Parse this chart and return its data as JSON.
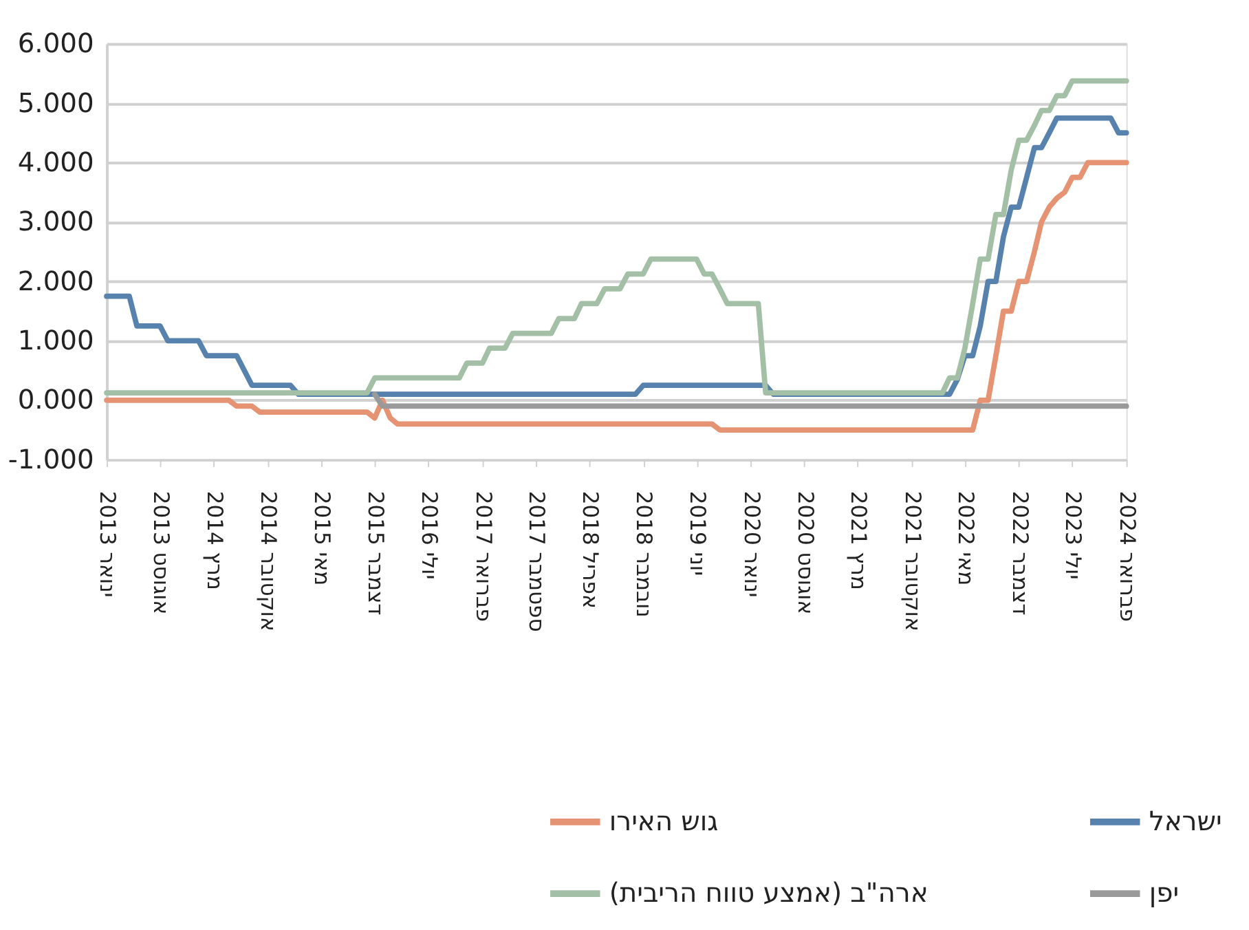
{
  "chart_data": {
    "type": "line",
    "ylim": [
      -1,
      6
    ],
    "yticks": [
      {
        "value": -1,
        "label": "-1.000"
      },
      {
        "value": 0,
        "label": "0.000"
      },
      {
        "value": 1,
        "label": "1.000"
      },
      {
        "value": 2,
        "label": "2.000"
      },
      {
        "value": 3,
        "label": "3.000"
      },
      {
        "value": 4,
        "label": "4.000"
      },
      {
        "value": 5,
        "label": "5.000"
      },
      {
        "value": 6,
        "label": "6.000"
      }
    ],
    "xlim": [
      "2013-01",
      "2024-02"
    ],
    "xticks": [
      {
        "value": "2013-01",
        "label": "ינואר 2013"
      },
      {
        "value": "2013-08",
        "label": "אוגוסט 2013"
      },
      {
        "value": "2014-03",
        "label": "מרץ 2014"
      },
      {
        "value": "2014-10",
        "label": "אוקטובר 2014"
      },
      {
        "value": "2015-05",
        "label": "מאי 2015"
      },
      {
        "value": "2015-12",
        "label": "דצמבר 2015"
      },
      {
        "value": "2016-07",
        "label": "יולי 2016"
      },
      {
        "value": "2017-02",
        "label": "פברואר 2017"
      },
      {
        "value": "2017-09",
        "label": "ספטמבר 2017"
      },
      {
        "value": "2018-04",
        "label": "אפריל 2018"
      },
      {
        "value": "2018-11",
        "label": "נובמבר 2018"
      },
      {
        "value": "2019-06",
        "label": "יוני 2019"
      },
      {
        "value": "2020-01",
        "label": "ינואר 2020"
      },
      {
        "value": "2020-08",
        "label": "אוגוסט 2020"
      },
      {
        "value": "2021-03",
        "label": "מרץ 2021"
      },
      {
        "value": "2021-10",
        "label": "אוקטובר 2021"
      },
      {
        "value": "2022-05",
        "label": "מאי 2022"
      },
      {
        "value": "2022-12",
        "label": "דצמבר 2022"
      },
      {
        "value": "2023-07",
        "label": "יולי 2023"
      },
      {
        "value": "2024-02",
        "label": "פברואר 2024"
      }
    ],
    "grid": "y",
    "legend": "bottom",
    "series": [
      {
        "name": "גוש האירו",
        "color": "#e59373",
        "x": [
          "2013-01",
          "2014-05",
          "2014-06",
          "2014-08",
          "2014-09",
          "2015-11",
          "2015-12",
          "2016-01",
          "2016-02",
          "2016-03",
          "2019-08",
          "2019-09",
          "2022-06",
          "2022-07",
          "2022-08",
          "2022-09",
          "2022-10",
          "2022-11",
          "2022-12",
          "2023-01",
          "2023-02",
          "2023-03",
          "2023-04",
          "2023-05",
          "2023-06",
          "2023-07",
          "2023-08",
          "2023-09",
          "2024-02"
        ],
        "values": [
          0,
          0,
          -0.1,
          -0.1,
          -0.2,
          -0.2,
          -0.3,
          0,
          -0.3,
          -0.4,
          -0.4,
          -0.5,
          -0.5,
          0,
          0,
          0.75,
          1.5,
          1.5,
          2,
          2,
          2.5,
          3,
          3.25,
          3.4,
          3.5,
          3.75,
          3.75,
          4,
          4
        ]
      },
      {
        "name": "ישראל",
        "color": "#5782ad",
        "x": [
          "2013-01",
          "2013-04",
          "2013-05",
          "2013-08",
          "2013-09",
          "2014-01",
          "2014-02",
          "2014-06",
          "2014-08",
          "2015-01",
          "2015-02",
          "2018-10",
          "2018-11",
          "2020-03",
          "2020-04",
          "2022-03",
          "2022-04",
          "2022-05",
          "2022-06",
          "2022-07",
          "2022-08",
          "2022-09",
          "2022-10",
          "2022-11",
          "2022-12",
          "2023-01",
          "2023-02",
          "2023-03",
          "2023-04",
          "2023-05",
          "2023-12",
          "2024-01",
          "2024-02"
        ],
        "values": [
          1.75,
          1.75,
          1.25,
          1.25,
          1,
          1,
          0.75,
          0.75,
          0.25,
          0.25,
          0.1,
          0.1,
          0.25,
          0.25,
          0.1,
          0.1,
          0.35,
          0.75,
          0.75,
          1.25,
          2,
          2,
          2.75,
          3.25,
          3.25,
          3.75,
          4.25,
          4.25,
          4.5,
          4.75,
          4.75,
          4.5,
          4.5
        ]
      },
      {
        "name": "ארה\"ב (אמצע טווח הריבית)",
        "color": "#a3c0a6",
        "x": [
          "2013-01",
          "2015-11",
          "2015-12",
          "2016-11",
          "2016-12",
          "2017-02",
          "2017-03",
          "2017-05",
          "2017-06",
          "2017-11",
          "2017-12",
          "2018-02",
          "2018-03",
          "2018-05",
          "2018-06",
          "2018-08",
          "2018-09",
          "2018-11",
          "2018-12",
          "2019-06",
          "2019-07",
          "2019-08",
          "2019-09",
          "2019-10",
          "2020-02",
          "2020-03",
          "2022-02",
          "2022-03",
          "2022-04",
          "2022-05",
          "2022-06",
          "2022-07",
          "2022-08",
          "2022-09",
          "2022-10",
          "2022-11",
          "2022-12",
          "2023-01",
          "2023-02",
          "2023-03",
          "2023-04",
          "2023-05",
          "2023-06",
          "2023-07",
          "2024-02"
        ],
        "values": [
          0.125,
          0.125,
          0.375,
          0.375,
          0.625,
          0.625,
          0.875,
          0.875,
          1.125,
          1.125,
          1.375,
          1.375,
          1.625,
          1.625,
          1.875,
          1.875,
          2.125,
          2.125,
          2.375,
          2.375,
          2.125,
          2.125,
          1.875,
          1.625,
          1.625,
          0.125,
          0.125,
          0.375,
          0.375,
          0.875,
          1.625,
          2.375,
          2.375,
          3.125,
          3.125,
          3.875,
          4.375,
          4.375,
          4.625,
          4.875,
          4.875,
          5.125,
          5.125,
          5.375,
          5.375
        ]
      },
      {
        "name": "יפן",
        "color": "#9a9a9a",
        "x": [
          "2015-12",
          "2016-01",
          "2024-02"
        ],
        "values": [
          0.1,
          -0.1,
          -0.1
        ]
      }
    ]
  }
}
